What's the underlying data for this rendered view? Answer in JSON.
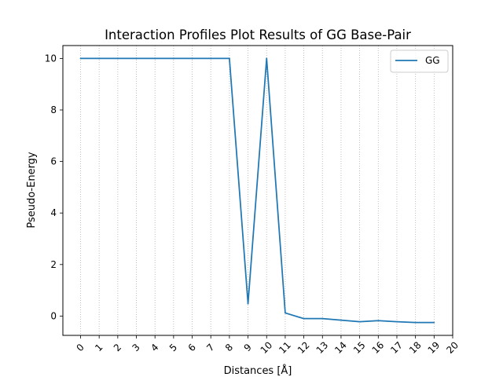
{
  "chart_data": {
    "type": "line",
    "title": "Interaction Profiles Plot Results of GG Base-Pair",
    "xlabel": "Distances [Å]",
    "ylabel": "Pseudo-Energy",
    "x_ticks": [
      "0",
      "1",
      "2",
      "3",
      "4",
      "5",
      "6",
      "7",
      "8",
      "9",
      "10",
      "11",
      "12",
      "13",
      "14",
      "15",
      "16",
      "17",
      "18",
      "19",
      "20"
    ],
    "y_ticks": [
      "0",
      "2",
      "4",
      "6",
      "8",
      "10"
    ],
    "xlim": [
      -0.95,
      20.0
    ],
    "ylim": [
      -0.75,
      10.5
    ],
    "grid": "x-vertical-dotted",
    "legend_position": "top-right",
    "series": [
      {
        "name": "GG",
        "color": "#1f77b4",
        "x": [
          0,
          1,
          2,
          3,
          4,
          5,
          6,
          7,
          8,
          9,
          10,
          11,
          12,
          13,
          14,
          15,
          16,
          17,
          18,
          19
        ],
        "values": [
          10,
          10,
          10,
          10,
          10,
          10,
          10,
          10,
          10,
          0.48,
          10,
          0.12,
          -0.1,
          -0.1,
          -0.16,
          -0.22,
          -0.18,
          -0.22,
          -0.25,
          -0.25
        ]
      }
    ]
  }
}
